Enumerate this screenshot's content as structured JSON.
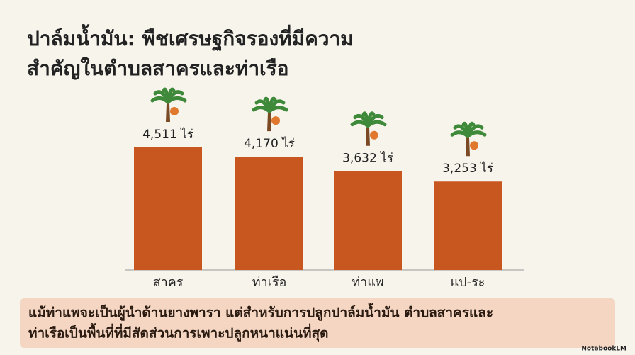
{
  "chart_data": {
    "type": "bar",
    "title": [
      "ปาล์มน้ำมัน: พืชเศรษฐกิจรองที่มีความ",
      "สำคัญในตำบลสาครและท่าเรือ"
    ],
    "categories": [
      "สาคร",
      "ท่าเรือ",
      "ท่าแพ",
      "แป-ระ"
    ],
    "values": [
      4511,
      4170,
      3632,
      3253
    ],
    "value_labels": [
      "4,511 ไร่",
      "4,170 ไร่",
      "3,632 ไร่",
      "3,253 ไร่"
    ],
    "color": "#c8561f",
    "note": [
      "แม้ท่าแพจะเป็นผู้นำด้านยางพารา แต่สำหรับการปลูกปาล์มน้ำมัน ตำบลสาครและ",
      "ท่าเรือเป็นพื้นที่ที่มีสัดส่วนการเพาะปลูกหนาแน่นที่สุด"
    ],
    "watermark": "NotebookLM"
  }
}
